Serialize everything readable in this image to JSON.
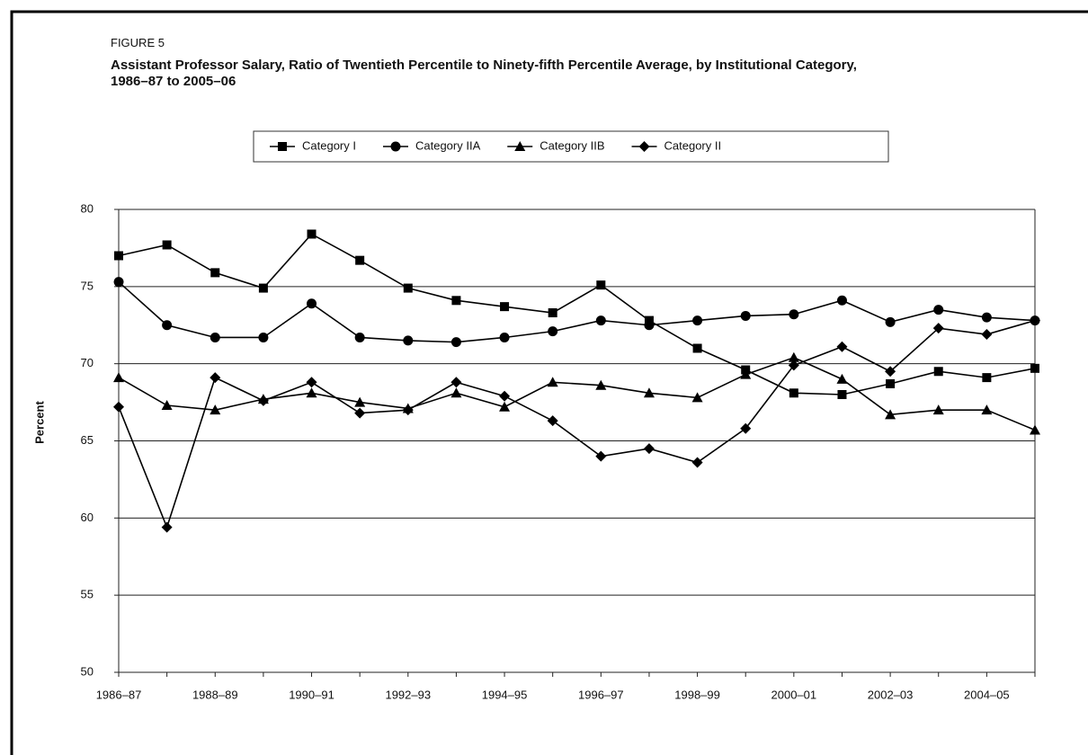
{
  "chart_data": {
    "type": "line",
    "figure_label": "FIGURE 5",
    "title": "Assistant Professor Salary, Ratio of Twentieth Percentile to Ninety-fifth Percentile Average, by Institutional Category, 1986–87 to 2005–06",
    "y_label": "Percent",
    "categories": [
      "1986–87",
      null,
      "1988–89",
      null,
      "1990–91",
      null,
      "1992–93",
      null,
      "1994–95",
      null,
      "1996–97",
      null,
      "1998–99",
      null,
      "2000–01",
      null,
      "2002–03",
      null,
      "2004–05",
      null
    ],
    "series": [
      {
        "name": "Category I",
        "color": "#000000",
        "marker": "square",
        "values": [
          77.0,
          77.7,
          75.9,
          74.9,
          78.4,
          76.7,
          74.9,
          74.1,
          73.7,
          73.3,
          75.1,
          72.8,
          71.0,
          69.6,
          68.1,
          68.0,
          68.7,
          69.5,
          69.1,
          69.7
        ]
      },
      {
        "name": "Category IIA",
        "color": "#000000",
        "marker": "circle",
        "values": [
          75.3,
          72.5,
          71.7,
          71.7,
          73.9,
          71.7,
          71.5,
          71.4,
          71.7,
          72.1,
          72.8,
          72.5,
          72.8,
          73.1,
          73.2,
          74.1,
          72.7,
          73.5,
          73.0,
          72.8
        ]
      },
      {
        "name": "Category IIB",
        "color": "#000000",
        "marker": "triangle",
        "values": [
          69.1,
          67.3,
          67.0,
          67.7,
          68.1,
          67.5,
          67.1,
          68.1,
          67.2,
          68.8,
          68.6,
          68.1,
          67.8,
          69.3,
          70.4,
          69.0,
          66.7,
          67.0,
          67.0,
          65.7
        ]
      },
      {
        "name": "Category II",
        "color": "#000000",
        "marker": "diamond",
        "values": [
          67.2,
          59.4,
          69.1,
          67.6,
          68.8,
          66.8,
          67.0,
          68.8,
          67.9,
          66.3,
          64.0,
          64.5,
          63.6,
          65.8,
          69.9,
          71.1,
          69.5,
          72.3,
          71.9,
          72.8
        ]
      }
    ],
    "ylim": [
      50,
      80
    ],
    "yticks": [
      50,
      55,
      60,
      65,
      70,
      75,
      80
    ],
    "grid": true,
    "legend": "top"
  }
}
